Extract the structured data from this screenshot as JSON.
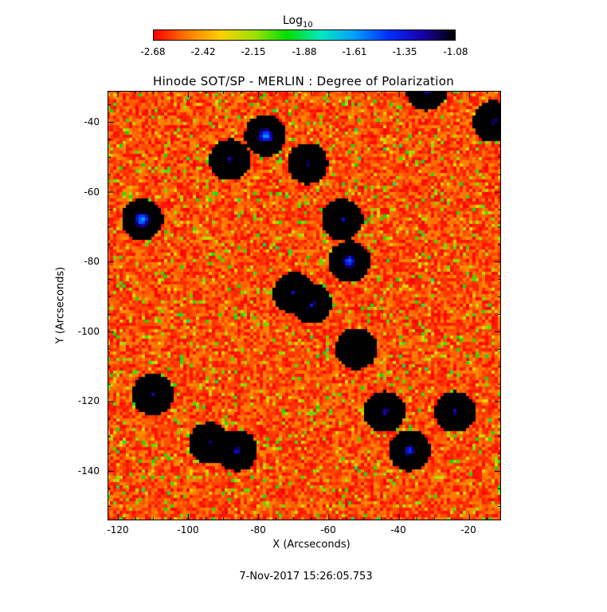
{
  "chart_data": {
    "type": "heatmap",
    "title": "Hinode SOT/SP - MERLIN : Degree of Polarization",
    "xlabel": "X (Arcseconds)",
    "ylabel": "Y (Arcseconds)",
    "xlim": [
      -123,
      -11
    ],
    "ylim": [
      -154,
      -31
    ],
    "xticks": [
      -120,
      -100,
      -80,
      -60,
      -40,
      -20
    ],
    "yticks": [
      -40,
      -60,
      -80,
      -100,
      -120,
      -140
    ],
    "colorbar": {
      "title": "Log",
      "title_subscript": "10",
      "range": [
        -2.68,
        -1.08
      ],
      "ticks": [
        "-2.68",
        "-2.42",
        "-2.15",
        "-1.88",
        "-1.61",
        "-1.35",
        "-1.08"
      ],
      "colormap": [
        "#ff0000",
        "#ff7a00",
        "#ffd000",
        "#9ee000",
        "#00e000",
        "#00e8c0",
        "#00a0ff",
        "#0030ff",
        "#1a00b0",
        "#000000"
      ]
    },
    "background_level": -2.6,
    "high_polarization_features": [
      {
        "x": -52,
        "y": -105,
        "level": -1.2
      },
      {
        "x": -66,
        "y": -52,
        "level": -1.35
      },
      {
        "x": -56,
        "y": -68,
        "level": -1.4
      },
      {
        "x": -88,
        "y": -51,
        "level": -1.4
      },
      {
        "x": -70,
        "y": -89,
        "level": -1.5
      },
      {
        "x": -65,
        "y": -92,
        "level": -1.6
      },
      {
        "x": -110,
        "y": -118,
        "level": -1.4
      },
      {
        "x": -94,
        "y": -132,
        "level": -1.4
      },
      {
        "x": -86,
        "y": -134,
        "level": -1.5
      },
      {
        "x": -44,
        "y": -123,
        "level": -1.5
      },
      {
        "x": -24,
        "y": -123,
        "level": -1.4
      },
      {
        "x": -13,
        "y": -40,
        "level": -1.4
      },
      {
        "x": -32,
        "y": -31,
        "level": -1.5
      },
      {
        "x": -54,
        "y": -80,
        "level": -1.7
      },
      {
        "x": -37,
        "y": -134,
        "level": -1.6
      },
      {
        "x": -78,
        "y": -44,
        "level": -1.8
      },
      {
        "x": -113,
        "y": -68,
        "level": -1.8
      }
    ],
    "grid": false
  },
  "timestamp": "7-Nov-2017 15:26:05.753"
}
